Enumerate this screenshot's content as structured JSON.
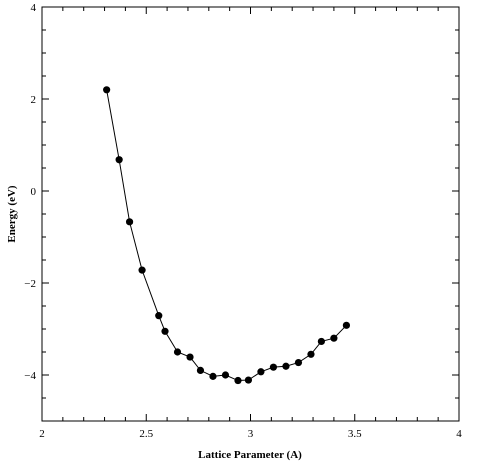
{
  "chart_data": {
    "type": "scatter",
    "title": "",
    "xlabel": "Lattice Parameter (A)",
    "ylabel": "Energy (eV)",
    "xlim": [
      2,
      4
    ],
    "ylim": [
      -5,
      4
    ],
    "x_ticks": [
      2,
      2.5,
      3,
      3.5,
      4
    ],
    "x_tick_labels": [
      "2",
      "2.5",
      "3",
      "3.5",
      "4"
    ],
    "y_ticks": [
      -4,
      -2,
      0,
      2,
      4
    ],
    "y_tick_labels": [
      "−4",
      "−2",
      "0",
      "2",
      "4"
    ],
    "grid": false,
    "legend": "none",
    "colors": {
      "line": "#000000",
      "marker": "#000000",
      "axes": "#000000"
    },
    "series": [
      {
        "name": "",
        "connect": true,
        "x": [
          2.31,
          2.37,
          2.42,
          2.48,
          2.56,
          2.59,
          2.65,
          2.71,
          2.76,
          2.82,
          2.88,
          2.94,
          2.99,
          3.05,
          3.11,
          3.17,
          3.23,
          3.29,
          3.34,
          3.4,
          3.46
        ],
        "y": [
          2.2,
          0.68,
          -0.67,
          -1.72,
          -2.71,
          -3.05,
          -3.5,
          -3.61,
          -3.9,
          -4.03,
          -4.0,
          -4.12,
          -4.11,
          -3.93,
          -3.83,
          -3.81,
          -3.73,
          -3.55,
          -3.27,
          -3.2,
          -2.92
        ]
      }
    ]
  }
}
